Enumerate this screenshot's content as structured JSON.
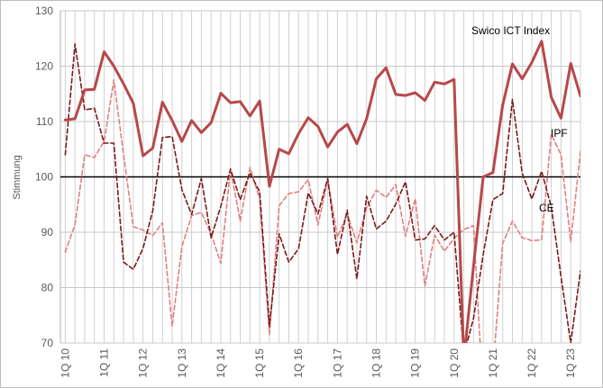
{
  "chart_data": {
    "type": "line",
    "title": "",
    "xlabel": "",
    "ylabel": "Stimmung",
    "ylim": [
      70,
      130
    ],
    "yticks": [
      "70",
      "80",
      "90",
      "100",
      "110",
      "120",
      "130"
    ],
    "reference_line": 100,
    "grid": "vertical-and-horizontal",
    "x_tick_labels": [
      "1Q 10",
      "1Q 11",
      "1Q 12",
      "1Q 13",
      "1Q 14",
      "1Q 15",
      "1Q 16",
      "1Q 17",
      "1Q 18",
      "1Q 19",
      "1Q 20",
      "1Q 21",
      "1Q 22",
      "1Q 23"
    ],
    "series": [
      {
        "name": "Swico ICT Index",
        "style": "solid-thick",
        "color": "#b7484a",
        "values": [
          110.3,
          110.5,
          115.7,
          115.8,
          122.6,
          120.0,
          116.8,
          113.3,
          103.8,
          105.2,
          113.5,
          110.2,
          106.4,
          110.2,
          108.0,
          109.8,
          115.1,
          113.4,
          113.6,
          111.0,
          113.7,
          98.3,
          105.0,
          104.2,
          107.8,
          110.7,
          109.1,
          105.4,
          108.1,
          109.5,
          106.0,
          110.5,
          117.7,
          119.7,
          114.9,
          114.7,
          115.2,
          113.8,
          117.1,
          116.8,
          117.6,
          67.0,
          84.0,
          100.0,
          100.8,
          113.0,
          120.4,
          117.7,
          120.7,
          124.5,
          114.4,
          110.6,
          120.5,
          114.6
        ]
      },
      {
        "name": "IPF",
        "style": "dashed",
        "color": "#e08080",
        "values": [
          86.4,
          91.4,
          104.0,
          103.5,
          106.4,
          117.5,
          104.0,
          91.0,
          90.4,
          89.4,
          91.7,
          73.0,
          87.4,
          93.0,
          93.6,
          89.7,
          84.4,
          101.5,
          92.0,
          101.7,
          96.0,
          71.5,
          94.8,
          97.0,
          97.3,
          99.5,
          91.3,
          99.5,
          89.1,
          93.3,
          88.1,
          94.4,
          97.6,
          96.3,
          98.6,
          89.3,
          96.1,
          80.3,
          89.5,
          86.6,
          88.9,
          90.5,
          91.2,
          60.0,
          65.0,
          88.0,
          92.0,
          89.0,
          88.5,
          88.6,
          107.7,
          104.0,
          88.3,
          104.6
        ]
      },
      {
        "name": "CE",
        "style": "dashed",
        "color": "#7a1a1a",
        "values": [
          104.0,
          124.0,
          112.1,
          112.4,
          106.1,
          106.1,
          84.6,
          83.3,
          87.1,
          93.9,
          107.1,
          107.3,
          97.7,
          93.2,
          99.7,
          89.0,
          94.7,
          101.4,
          95.9,
          100.7,
          97.3,
          73.0,
          89.7,
          84.6,
          87.0,
          97.1,
          93.3,
          99.7,
          86.0,
          94.0,
          81.6,
          96.5,
          90.6,
          92.0,
          95.1,
          99.1,
          88.6,
          88.8,
          91.2,
          88.6,
          90.0,
          67.8,
          74.5,
          86.0,
          95.9,
          97.0,
          114.0,
          100.7,
          96.0,
          101.0,
          94.6,
          82.0,
          70.0,
          83.0
        ]
      }
    ],
    "legend": "inline-labels"
  }
}
